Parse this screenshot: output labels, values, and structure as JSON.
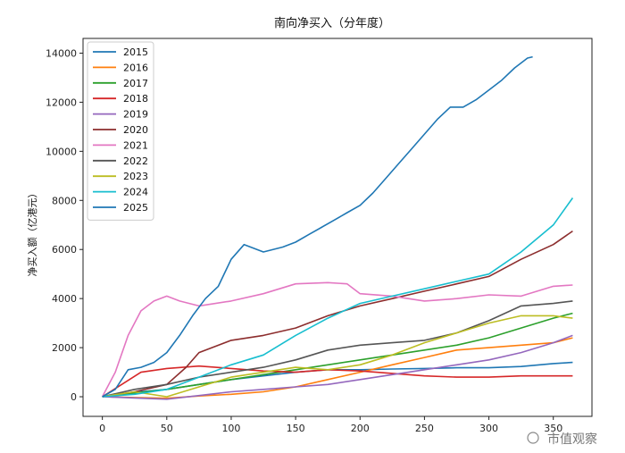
{
  "chart_data": {
    "type": "line",
    "title": "南向净买入（分年度）",
    "xlabel": "",
    "ylabel": "净买入额（亿港元）",
    "xlim": [
      -15,
      380
    ],
    "ylim": [
      -800,
      14600
    ],
    "xticks": [
      0,
      50,
      100,
      150,
      200,
      250,
      300,
      350
    ],
    "yticks": [
      0,
      2000,
      4000,
      6000,
      8000,
      10000,
      12000,
      14000
    ],
    "grid": false,
    "legend_position": "top-left",
    "series": [
      {
        "name": "2015",
        "color": "#1f77b4",
        "points": [
          [
            0,
            0
          ],
          [
            25,
            180
          ],
          [
            50,
            300
          ],
          [
            75,
            500
          ],
          [
            100,
            700
          ],
          [
            125,
            850
          ],
          [
            150,
            1000
          ],
          [
            175,
            1100
          ],
          [
            200,
            1100
          ],
          [
            225,
            1130
          ],
          [
            250,
            1150
          ],
          [
            275,
            1180
          ],
          [
            300,
            1180
          ],
          [
            325,
            1230
          ],
          [
            350,
            1350
          ],
          [
            365,
            1400
          ]
        ]
      },
      {
        "name": "2016",
        "color": "#ff7f0e",
        "points": [
          [
            0,
            0
          ],
          [
            25,
            -30
          ],
          [
            50,
            -60
          ],
          [
            75,
            30
          ],
          [
            100,
            100
          ],
          [
            125,
            200
          ],
          [
            150,
            400
          ],
          [
            175,
            700
          ],
          [
            200,
            1000
          ],
          [
            225,
            1300
          ],
          [
            250,
            1600
          ],
          [
            275,
            1900
          ],
          [
            300,
            2000
          ],
          [
            325,
            2100
          ],
          [
            350,
            2200
          ],
          [
            365,
            2400
          ]
        ]
      },
      {
        "name": "2017",
        "color": "#2ca02c",
        "points": [
          [
            0,
            0
          ],
          [
            25,
            150
          ],
          [
            50,
            300
          ],
          [
            75,
            500
          ],
          [
            100,
            700
          ],
          [
            125,
            900
          ],
          [
            150,
            1100
          ],
          [
            175,
            1300
          ],
          [
            200,
            1500
          ],
          [
            225,
            1700
          ],
          [
            250,
            1900
          ],
          [
            275,
            2100
          ],
          [
            300,
            2400
          ],
          [
            325,
            2800
          ],
          [
            350,
            3200
          ],
          [
            365,
            3400
          ]
        ]
      },
      {
        "name": "2018",
        "color": "#d62728",
        "points": [
          [
            0,
            0
          ],
          [
            15,
            500
          ],
          [
            30,
            1000
          ],
          [
            50,
            1150
          ],
          [
            75,
            1250
          ],
          [
            100,
            1150
          ],
          [
            125,
            1050
          ],
          [
            150,
            1000
          ],
          [
            175,
            1100
          ],
          [
            200,
            1050
          ],
          [
            225,
            950
          ],
          [
            250,
            850
          ],
          [
            275,
            800
          ],
          [
            300,
            800
          ],
          [
            325,
            850
          ],
          [
            350,
            850
          ],
          [
            365,
            850
          ]
        ]
      },
      {
        "name": "2019",
        "color": "#9467bd",
        "points": [
          [
            0,
            0
          ],
          [
            25,
            -50
          ],
          [
            50,
            -100
          ],
          [
            75,
            50
          ],
          [
            100,
            200
          ],
          [
            125,
            300
          ],
          [
            150,
            400
          ],
          [
            175,
            500
          ],
          [
            200,
            700
          ],
          [
            225,
            900
          ],
          [
            250,
            1100
          ],
          [
            275,
            1300
          ],
          [
            300,
            1500
          ],
          [
            325,
            1800
          ],
          [
            350,
            2200
          ],
          [
            365,
            2500
          ]
        ]
      },
      {
        "name": "2020",
        "color": "#8c2d2d",
        "points": [
          [
            0,
            0
          ],
          [
            25,
            200
          ],
          [
            50,
            500
          ],
          [
            65,
            1200
          ],
          [
            75,
            1800
          ],
          [
            100,
            2300
          ],
          [
            125,
            2500
          ],
          [
            150,
            2800
          ],
          [
            175,
            3300
          ],
          [
            200,
            3700
          ],
          [
            225,
            4000
          ],
          [
            250,
            4300
          ],
          [
            275,
            4600
          ],
          [
            300,
            4900
          ],
          [
            325,
            5600
          ],
          [
            350,
            6200
          ],
          [
            365,
            6750
          ]
        ]
      },
      {
        "name": "2021",
        "color": "#e377c2",
        "points": [
          [
            0,
            0
          ],
          [
            10,
            1000
          ],
          [
            20,
            2500
          ],
          [
            30,
            3500
          ],
          [
            40,
            3900
          ],
          [
            50,
            4100
          ],
          [
            60,
            3900
          ],
          [
            75,
            3700
          ],
          [
            100,
            3900
          ],
          [
            125,
            4200
          ],
          [
            150,
            4600
          ],
          [
            175,
            4650
          ],
          [
            190,
            4600
          ],
          [
            200,
            4200
          ],
          [
            225,
            4100
          ],
          [
            250,
            3900
          ],
          [
            275,
            4000
          ],
          [
            300,
            4150
          ],
          [
            325,
            4100
          ],
          [
            350,
            4500
          ],
          [
            365,
            4550
          ]
        ]
      },
      {
        "name": "2022",
        "color": "#555555",
        "points": [
          [
            0,
            0
          ],
          [
            25,
            300
          ],
          [
            50,
            500
          ],
          [
            75,
            800
          ],
          [
            100,
            1000
          ],
          [
            125,
            1200
          ],
          [
            150,
            1500
          ],
          [
            175,
            1900
          ],
          [
            200,
            2100
          ],
          [
            225,
            2200
          ],
          [
            250,
            2300
          ],
          [
            275,
            2600
          ],
          [
            300,
            3100
          ],
          [
            325,
            3700
          ],
          [
            350,
            3800
          ],
          [
            365,
            3900
          ]
        ]
      },
      {
        "name": "2023",
        "color": "#bcbd22",
        "points": [
          [
            0,
            0
          ],
          [
            25,
            200
          ],
          [
            50,
            0
          ],
          [
            75,
            400
          ],
          [
            100,
            800
          ],
          [
            125,
            1000
          ],
          [
            150,
            1200
          ],
          [
            175,
            1100
          ],
          [
            200,
            1300
          ],
          [
            225,
            1700
          ],
          [
            250,
            2200
          ],
          [
            275,
            2600
          ],
          [
            300,
            3000
          ],
          [
            325,
            3300
          ],
          [
            350,
            3300
          ],
          [
            365,
            3200
          ]
        ]
      },
      {
        "name": "2024",
        "color": "#17becf",
        "points": [
          [
            0,
            0
          ],
          [
            25,
            100
          ],
          [
            50,
            300
          ],
          [
            75,
            800
          ],
          [
            100,
            1300
          ],
          [
            125,
            1700
          ],
          [
            150,
            2500
          ],
          [
            175,
            3200
          ],
          [
            200,
            3800
          ],
          [
            225,
            4100
          ],
          [
            250,
            4400
          ],
          [
            275,
            4700
          ],
          [
            300,
            5000
          ],
          [
            325,
            5900
          ],
          [
            350,
            7000
          ],
          [
            365,
            8100
          ]
        ]
      },
      {
        "name": "2025",
        "color": "#1f77b4",
        "points": [
          [
            0,
            0
          ],
          [
            10,
            300
          ],
          [
            20,
            1100
          ],
          [
            30,
            1200
          ],
          [
            40,
            1400
          ],
          [
            50,
            1800
          ],
          [
            60,
            2500
          ],
          [
            70,
            3300
          ],
          [
            80,
            4000
          ],
          [
            90,
            4500
          ],
          [
            100,
            5600
          ],
          [
            110,
            6200
          ],
          [
            125,
            5900
          ],
          [
            140,
            6100
          ],
          [
            150,
            6300
          ],
          [
            160,
            6600
          ],
          [
            170,
            6900
          ],
          [
            180,
            7200
          ],
          [
            190,
            7500
          ],
          [
            200,
            7800
          ],
          [
            210,
            8300
          ],
          [
            220,
            8900
          ],
          [
            230,
            9500
          ],
          [
            240,
            10100
          ],
          [
            250,
            10700
          ],
          [
            260,
            11300
          ],
          [
            270,
            11800
          ],
          [
            280,
            11800
          ],
          [
            290,
            12100
          ],
          [
            300,
            12500
          ],
          [
            310,
            12900
          ],
          [
            320,
            13400
          ],
          [
            330,
            13800
          ],
          [
            334,
            13850
          ]
        ]
      }
    ]
  },
  "watermark_text": "市值观察"
}
